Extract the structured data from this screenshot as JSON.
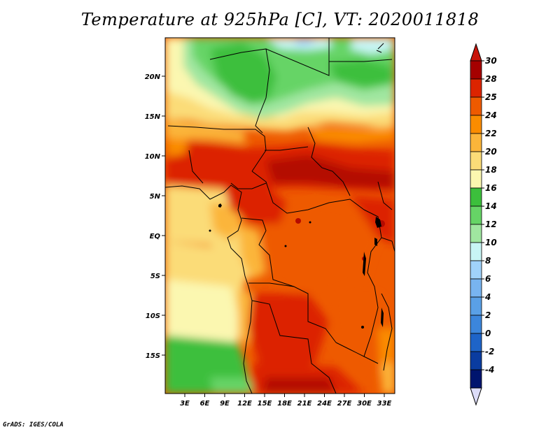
{
  "title": "Temperature at 925hPa [C], VT: 2020011818",
  "credit": "GrADS: IGES/COLA",
  "lat_labels": [
    "20N",
    "15N",
    "10N",
    "5N",
    "EQ",
    "5S",
    "10S",
    "15S"
  ],
  "lon_labels": [
    "3E",
    "6E",
    "9E",
    "12E",
    "15E",
    "18E",
    "21E",
    "24E",
    "27E",
    "30E",
    "33E"
  ],
  "colorbar": {
    "labels": [
      "30",
      "28",
      "25",
      "24",
      "22",
      "20",
      "18",
      "16",
      "14",
      "12",
      "10",
      "8",
      "6",
      "4",
      "2",
      "0",
      "-2",
      "-4"
    ],
    "colors": [
      "#a50000",
      "#dc2400",
      "#ee5a00",
      "#fa8c00",
      "#fbb53a",
      "#fbdc78",
      "#fbf7b0",
      "#3cbf3c",
      "#66d466",
      "#a0e6a0",
      "#c8f5f5",
      "#a0d2fa",
      "#78b4f0",
      "#5aa0e6",
      "#3c86dc",
      "#1e64c8",
      "#0a3ca0",
      "#00146e"
    ],
    "top_triangle_color": "#c8140a",
    "bottom_triangle_color": "#dcdcf8"
  }
}
